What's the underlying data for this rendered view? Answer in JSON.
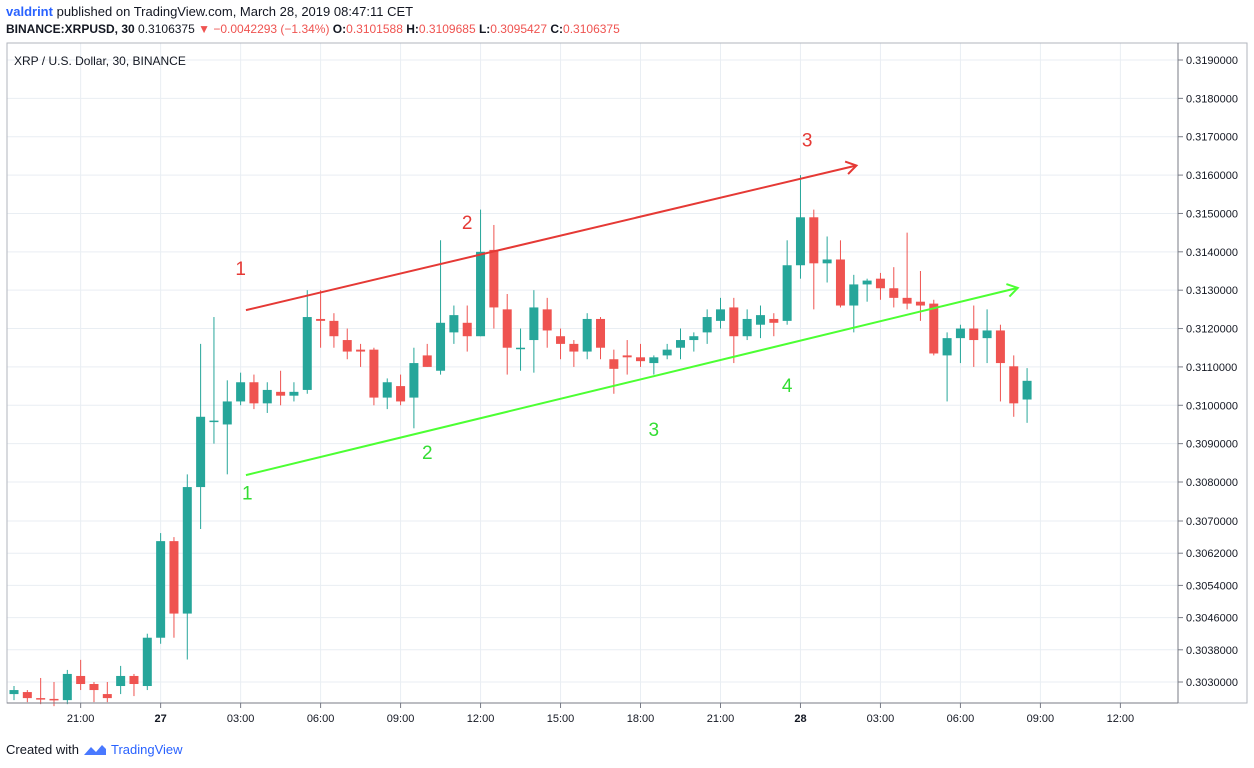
{
  "header": {
    "user": "valdrint",
    "published_text": "published on TradingView.com, March 28, 2019 08:47:11 CET",
    "symbol_interval": "BINANCE:XRPUSD, 30",
    "last": "0.3106375",
    "change": "−0.0042293 (−1.34%)",
    "o_label": "O:",
    "o": "0.3101588",
    "h_label": "H:",
    "h": "0.3109685",
    "l_label": "L:",
    "l": "0.3095427",
    "c_label": "C:",
    "c": "0.3106375"
  },
  "footer": {
    "created_with": "Created with",
    "brand": "TradingView"
  },
  "colors": {
    "up": "#26a69a",
    "down": "#ef5350",
    "grid": "#e9eef3",
    "resistance": "#e53935",
    "support": "#4cff33"
  },
  "chart_data": {
    "type": "candlestick",
    "title": "XRP / U.S. Dollar, 30, BINANCE",
    "x_ticks": [
      {
        "i": 5,
        "label": "21:00"
      },
      {
        "i": 11,
        "label": "27"
      },
      {
        "i": 17,
        "label": "03:00"
      },
      {
        "i": 23,
        "label": "06:00"
      },
      {
        "i": 29,
        "label": "09:00"
      },
      {
        "i": 35,
        "label": "12:00"
      },
      {
        "i": 41,
        "label": "15:00"
      },
      {
        "i": 47,
        "label": "18:00"
      },
      {
        "i": 53,
        "label": "21:00"
      },
      {
        "i": 59,
        "label": "28"
      },
      {
        "i": 65,
        "label": "03:00"
      },
      {
        "i": 71,
        "label": "06:00"
      },
      {
        "i": 77,
        "label": "09:00"
      },
      {
        "i": 83,
        "label": "12:00"
      }
    ],
    "y_ticks": [
      "0.3190000",
      "0.3180000",
      "0.3170000",
      "0.3160000",
      "0.3150000",
      "0.3140000",
      "0.3130000",
      "0.3120000",
      "0.3110000",
      "0.3100000",
      "0.3090000",
      "0.3080000",
      "0.3070000",
      "0.3062000",
      "0.3054000",
      "0.3046000",
      "0.3038000",
      "0.3030000"
    ],
    "candles": [
      [
        0.3027,
        0.3029,
        0.30255,
        0.3028
      ],
      [
        0.30275,
        0.3028,
        0.3025,
        0.3026
      ],
      [
        0.3026,
        0.3031,
        0.30245,
        0.30258
      ],
      [
        0.30258,
        0.303,
        0.3024,
        0.30255
      ],
      [
        0.30255,
        0.3033,
        0.30245,
        0.3032
      ],
      [
        0.30315,
        0.30355,
        0.3028,
        0.30295
      ],
      [
        0.30295,
        0.303,
        0.3025,
        0.3028
      ],
      [
        0.3027,
        0.303,
        0.3025,
        0.3026
      ],
      [
        0.3029,
        0.3034,
        0.3027,
        0.30315
      ],
      [
        0.30315,
        0.3032,
        0.30265,
        0.30295
      ],
      [
        0.3029,
        0.3042,
        0.3028,
        0.3041
      ],
      [
        0.3041,
        0.3067,
        0.30395,
        0.3065
      ],
      [
        0.3065,
        0.3066,
        0.3041,
        0.3047
      ],
      [
        0.3047,
        0.3082,
        0.30356,
        0.30787
      ],
      [
        0.30787,
        0.3116,
        0.3068,
        0.3097
      ],
      [
        0.3096,
        0.3123,
        0.309,
        0.3096
      ],
      [
        0.3095,
        0.31065,
        0.3082,
        0.3101
      ],
      [
        0.3101,
        0.31085,
        0.31,
        0.3106
      ],
      [
        0.3106,
        0.3108,
        0.3099,
        0.31005
      ],
      [
        0.31005,
        0.3106,
        0.3098,
        0.3104
      ],
      [
        0.31035,
        0.3109,
        0.31,
        0.31025
      ],
      [
        0.31025,
        0.3106,
        0.3101,
        0.31035
      ],
      [
        0.3104,
        0.313,
        0.3103,
        0.3123
      ],
      [
        0.31225,
        0.313,
        0.3115,
        0.3122
      ],
      [
        0.3122,
        0.3124,
        0.3115,
        0.3118
      ],
      [
        0.3117,
        0.312,
        0.3112,
        0.3114
      ],
      [
        0.31145,
        0.3116,
        0.311,
        0.3114
      ],
      [
        0.31145,
        0.3115,
        0.31,
        0.3102
      ],
      [
        0.3102,
        0.3107,
        0.3099,
        0.3106
      ],
      [
        0.3105,
        0.3108,
        0.31,
        0.3101
      ],
      [
        0.3102,
        0.3115,
        0.3094,
        0.3111
      ],
      [
        0.3113,
        0.3116,
        0.311,
        0.311
      ],
      [
        0.3109,
        0.3143,
        0.3108,
        0.31215
      ],
      [
        0.3119,
        0.3126,
        0.3116,
        0.31235
      ],
      [
        0.31215,
        0.3126,
        0.3114,
        0.3118
      ],
      [
        0.3118,
        0.3151,
        0.3118,
        0.314
      ],
      [
        0.31405,
        0.3147,
        0.312,
        0.31255
      ],
      [
        0.3125,
        0.3129,
        0.3108,
        0.3115
      ],
      [
        0.3115,
        0.312,
        0.3109,
        0.3115
      ],
      [
        0.3117,
        0.313,
        0.31085,
        0.31255
      ],
      [
        0.3125,
        0.3128,
        0.3115,
        0.31195
      ],
      [
        0.3118,
        0.312,
        0.3112,
        0.3116
      ],
      [
        0.3116,
        0.3117,
        0.311,
        0.3114
      ],
      [
        0.3114,
        0.3124,
        0.3112,
        0.31225
      ],
      [
        0.31225,
        0.3123,
        0.3112,
        0.3115
      ],
      [
        0.3112,
        0.31145,
        0.3103,
        0.31095
      ],
      [
        0.3113,
        0.3117,
        0.3108,
        0.31125
      ],
      [
        0.31125,
        0.3116,
        0.311,
        0.31115
      ],
      [
        0.3111,
        0.3113,
        0.3108,
        0.31125
      ],
      [
        0.3113,
        0.3116,
        0.3112,
        0.31145
      ],
      [
        0.3115,
        0.312,
        0.3112,
        0.3117
      ],
      [
        0.3117,
        0.3119,
        0.3114,
        0.3118
      ],
      [
        0.3119,
        0.3125,
        0.3116,
        0.3123
      ],
      [
        0.3122,
        0.3128,
        0.312,
        0.3125
      ],
      [
        0.31255,
        0.3128,
        0.3111,
        0.3118
      ],
      [
        0.3118,
        0.3125,
        0.3117,
        0.31225
      ],
      [
        0.3121,
        0.3126,
        0.31175,
        0.31235
      ],
      [
        0.31225,
        0.3124,
        0.3118,
        0.31215
      ],
      [
        0.3122,
        0.3143,
        0.3121,
        0.31365
      ],
      [
        0.31365,
        0.316,
        0.3133,
        0.3149
      ],
      [
        0.3149,
        0.3151,
        0.3125,
        0.3137
      ],
      [
        0.3137,
        0.3144,
        0.3132,
        0.3138
      ],
      [
        0.3138,
        0.3143,
        0.31255,
        0.3126
      ],
      [
        0.3126,
        0.3134,
        0.3119,
        0.31315
      ],
      [
        0.31315,
        0.3133,
        0.3127,
        0.31325
      ],
      [
        0.3133,
        0.31345,
        0.31275,
        0.31305
      ],
      [
        0.31305,
        0.3136,
        0.31255,
        0.3128
      ],
      [
        0.3128,
        0.3145,
        0.3125,
        0.31265
      ],
      [
        0.3127,
        0.3135,
        0.3122,
        0.3126
      ],
      [
        0.31265,
        0.31275,
        0.3113,
        0.31135
      ],
      [
        0.3113,
        0.3119,
        0.3101,
        0.31175
      ],
      [
        0.31175,
        0.3121,
        0.3111,
        0.312
      ],
      [
        0.312,
        0.3126,
        0.311,
        0.3117
      ],
      [
        0.31175,
        0.3125,
        0.3111,
        0.31195
      ],
      [
        0.31195,
        0.3121,
        0.3101,
        0.3111
      ],
      [
        0.31101588,
        0.3113,
        0.3097,
        0.31005
      ],
      [
        0.31015,
        0.31096854,
        0.3095427,
        0.3106375
      ]
    ],
    "trendlines": [
      {
        "name": "resistance",
        "from": {
          "i": 17.4,
          "y": 0.31248
        },
        "to": {
          "i": 63.2,
          "y": 0.31625
        }
      },
      {
        "name": "support",
        "from": {
          "i": 17.4,
          "y": 0.30818
        },
        "to": {
          "i": 75.3,
          "y": 0.31306
        }
      }
    ],
    "wave_labels": [
      {
        "text": "1",
        "color": "resistance",
        "i": 17.0,
        "y": 0.3134
      },
      {
        "text": "2",
        "color": "resistance",
        "i": 34.0,
        "y": 0.3146
      },
      {
        "text": "3",
        "color": "resistance",
        "i": 59.5,
        "y": 0.31675
      },
      {
        "text": "1",
        "color": "support",
        "i": 17.5,
        "y": 0.30755
      },
      {
        "text": "2",
        "color": "support",
        "i": 31.0,
        "y": 0.3086
      },
      {
        "text": "3",
        "color": "support",
        "i": 48.0,
        "y": 0.3092
      },
      {
        "text": "4",
        "color": "support",
        "i": 58.0,
        "y": 0.31035
      }
    ]
  }
}
